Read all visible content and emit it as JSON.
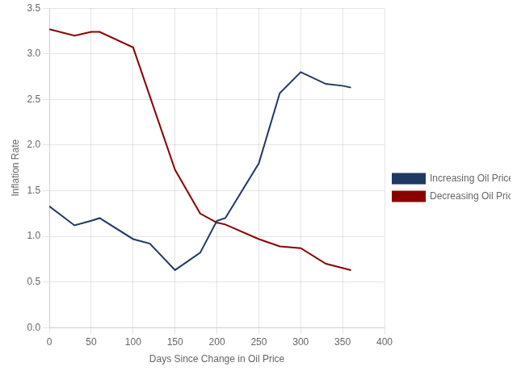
{
  "chart_data": {
    "type": "line",
    "xlabel": "Days Since Change in Oil Price",
    "ylabel": "Inflation Rate",
    "xlim": [
      0,
      400
    ],
    "ylim": [
      0.0,
      3.5
    ],
    "xticks": [
      0,
      50,
      100,
      150,
      200,
      250,
      300,
      350,
      400
    ],
    "yticks": [
      {
        "value": 0.0,
        "label": "0.0"
      },
      0.5,
      {
        "value": 1.0,
        "label": "1.0"
      },
      1.5,
      {
        "value": 2.0,
        "label": "2.0"
      },
      2.5,
      {
        "value": 3.0,
        "label": "3.0"
      },
      3.5
    ],
    "series": [
      {
        "name": "Increasing Oil Prices",
        "color": "#1F3864",
        "x": [
          0,
          30,
          50,
          60,
          100,
          120,
          150,
          180,
          200,
          210,
          250,
          275,
          300,
          330,
          350,
          360
        ],
        "values": [
          1.33,
          1.12,
          1.17,
          1.2,
          0.97,
          0.92,
          0.63,
          0.82,
          1.17,
          1.2,
          1.8,
          2.57,
          2.8,
          2.67,
          2.65,
          2.63
        ]
      },
      {
        "name": "Decreasing Oil Prices",
        "color": "#8B0000",
        "x": [
          0,
          30,
          50,
          60,
          100,
          150,
          180,
          200,
          210,
          250,
          275,
          300,
          330,
          360
        ],
        "values": [
          3.27,
          3.2,
          3.24,
          3.24,
          3.07,
          1.73,
          1.25,
          1.15,
          1.13,
          0.97,
          0.89,
          0.87,
          0.7,
          0.63
        ]
      }
    ],
    "grid": true,
    "legend": "right"
  }
}
